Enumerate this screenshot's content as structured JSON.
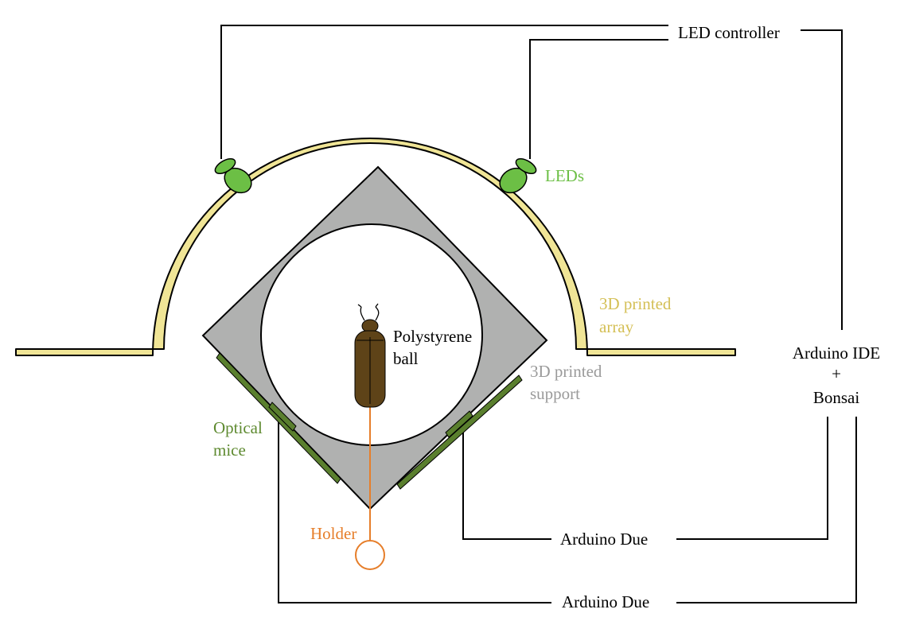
{
  "labels": {
    "led_controller": "LED controller",
    "leds": "LEDs",
    "array_line1": "3D printed",
    "array_line2": "array",
    "support_line1": "3D printed",
    "support_line2": "support",
    "ball_line1": "Polystyrene",
    "ball_line2": "ball",
    "mice_line1": "Optical",
    "mice_line2": "mice",
    "holder": "Holder",
    "arduino_due_1": "Arduino Due",
    "arduino_due_2": "Arduino Due",
    "ide_line1": "Arduino IDE",
    "ide_line2": "+",
    "ide_line3": "Bonsai"
  },
  "colors": {
    "array_fill": "#f0e596",
    "led_green": "#6cbf45",
    "mice_green": "#5a7f2e",
    "support_gray": "#b0b1b0",
    "holder_orange": "#e67e2a",
    "beetle_brown": "#5e4318",
    "array_text": "#d4bf55",
    "leds_text": "#6cbf45",
    "support_text": "#9a9a9a",
    "mice_text": "#5e8a30",
    "line": "#000000"
  }
}
